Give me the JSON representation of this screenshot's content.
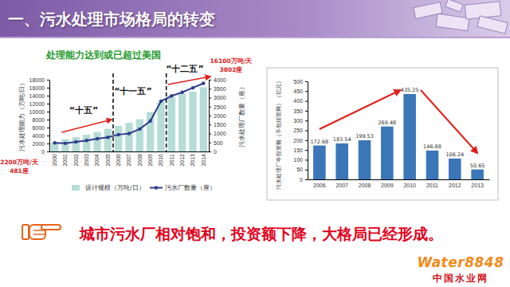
{
  "title": "一、污水处理市场格局的转变",
  "conclusion": "城市污水厂相对饱和，投资额下降，大格局已经形成。",
  "logo": {
    "text": "Water8848",
    "subtitle": "中国水业网"
  },
  "chart_data": [
    {
      "type": "bar",
      "title": "处理能力达到或已超过美国",
      "categories": [
        "2000",
        "2001",
        "2002",
        "2003",
        "2004",
        "2005",
        "2006",
        "2007",
        "2008",
        "2009",
        "2010",
        "2011",
        "2012",
        "2013",
        "2014"
      ],
      "series": [
        {
          "name": "设计规模（万吨/日）",
          "type": "bar",
          "color": "#b5ddd6",
          "values": [
            2200,
            3100,
            3600,
            4200,
            4900,
            5700,
            6400,
            7200,
            8100,
            9900,
            12500,
            13600,
            14500,
            15000,
            16100
          ]
        },
        {
          "name": "污水厂数量（座）",
          "type": "line",
          "axis": "y2",
          "marker": "circle",
          "color": "#2e3d8c",
          "values": [
            481,
            452,
            537,
            612,
            708,
            792,
            939,
            1000,
            1250,
            1700,
            2800,
            3100,
            3300,
            3550,
            3802
          ]
        }
      ],
      "ylabel": "污水处理能力（万吨/日）",
      "y2label": "污水处理厂数量（座）",
      "ylim": [
        0,
        18000
      ],
      "yticks": [
        0,
        2000,
        4000,
        6000,
        8000,
        10000,
        12000,
        14000,
        16000,
        18000
      ],
      "y2lim": [
        0,
        4000
      ],
      "y2ticks": [
        0,
        500,
        1000,
        1500,
        2000,
        2500,
        3000,
        3500,
        4000
      ],
      "legend": "bottom",
      "grid": false,
      "annotations": [
        "2200万吨/天",
        "481座",
        "16100万吨/天",
        "3802座",
        "“十五”",
        "“十一五”",
        "“十二五”"
      ]
    },
    {
      "type": "bar",
      "categories": [
        "2006",
        "2007",
        "2008",
        "2009",
        "2010",
        "2011",
        "2012",
        "2013"
      ],
      "values": [
        172.68,
        183.54,
        199.53,
        269.48,
        435.25,
        146.88,
        106.24,
        50.65
      ],
      "color": "#3b76b9",
      "ylabel": "污水处理厂年投资额（不包括管网）（亿元）",
      "ylim": [
        0,
        500
      ],
      "yticks": [
        0,
        50,
        100,
        150,
        200,
        250,
        300,
        350,
        400,
        450,
        500
      ],
      "data_labels": true,
      "grid": false
    }
  ]
}
